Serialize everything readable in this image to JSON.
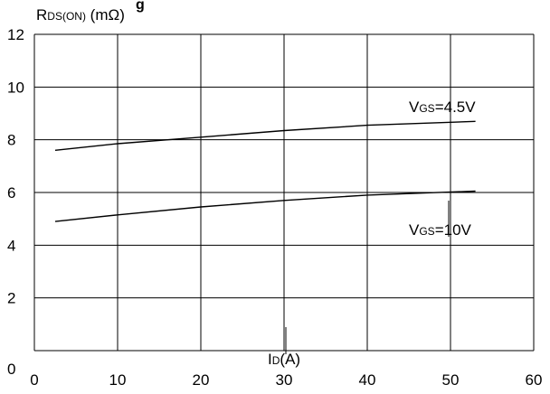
{
  "chart_data": {
    "type": "line",
    "title_fragment": "g",
    "ylabel": {
      "main": "R",
      "sub": "DS(ON)",
      "unit": " (mΩ)"
    },
    "xlabel": {
      "main": "I",
      "sub": "D",
      "unit": "(A)"
    },
    "xlim": [
      0,
      60
    ],
    "ylim": [
      0,
      12
    ],
    "x_ticks": [
      "0",
      "10",
      "20",
      "30",
      "40",
      "50",
      "60"
    ],
    "y_ticks": [
      "0",
      "2",
      "4",
      "6",
      "8",
      "10",
      "12"
    ],
    "grid": true,
    "series": [
      {
        "name": "VGS=4.5V",
        "label": {
          "main": "V",
          "sub": "GS",
          "rest": "=4.5V"
        },
        "points": [
          [
            2.5,
            7.6
          ],
          [
            10,
            7.85
          ],
          [
            20,
            8.1
          ],
          [
            30,
            8.35
          ],
          [
            40,
            8.55
          ],
          [
            53,
            8.7
          ]
        ]
      },
      {
        "name": "VGS=10V",
        "label": {
          "main": "V",
          "sub": "GS",
          "rest": "=10V"
        },
        "points": [
          [
            2.5,
            4.9
          ],
          [
            10,
            5.15
          ],
          [
            20,
            5.45
          ],
          [
            30,
            5.7
          ],
          [
            40,
            5.9
          ],
          [
            53,
            6.05
          ]
        ]
      }
    ]
  }
}
